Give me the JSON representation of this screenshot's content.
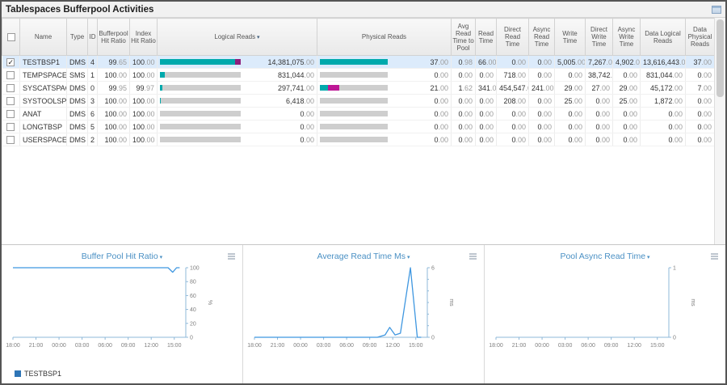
{
  "title": "Tablespaces Bufferpool Activities",
  "colors": {
    "teal": "#00a9ac",
    "purple": "#8e1f7c",
    "magenta": "#bd1795",
    "line_blue": "#3f97e0",
    "axis_blue": "#8fb8d8"
  },
  "table": {
    "headers": [
      "",
      "Name",
      "Type",
      "ID",
      "Bufferpool Hit Ratio",
      "Index Hit Ratio",
      "Logical Reads",
      "Physical Reads",
      "Avg Read Time to Pool",
      "Read Time",
      "Direct Read Time",
      "Async Read Time",
      "Write Time",
      "Direct Write Time",
      "Async Write Time",
      "Data Logical Reads",
      "Data Physical Reads"
    ],
    "sorted_header": "Logical Reads",
    "rows": [
      {
        "checked": true,
        "name": "TESTBSP1",
        "type": "DMS",
        "id": "4",
        "bp_hit": "99.65",
        "idx_hit": "100.00",
        "logical": {
          "value": "14,381,075.00",
          "bar": [
            {
              "c": "#00a9ac",
              "pct": 93
            },
            {
              "c": "#8e1f7c",
              "pct": 7
            }
          ]
        },
        "physical": {
          "value": "37.00",
          "bar": [
            {
              "c": "#00a9ac",
              "pct": 100
            }
          ]
        },
        "avg_read_pool": "0.98",
        "read_time": "66.00",
        "direct_read": "0.00",
        "async_read": "0.00",
        "write_time": "5,005.00",
        "direct_write": "7,267.00",
        "async_write": "4,902.00",
        "data_logical": "13,616,443.00",
        "data_physical": "37.00"
      },
      {
        "checked": false,
        "name": "TEMPSPACE1",
        "type": "SMS",
        "id": "1",
        "bp_hit": "100.00",
        "idx_hit": "100.00",
        "logical": {
          "value": "831,044.00",
          "bar": [
            {
              "c": "#00a9ac",
              "pct": 6
            }
          ]
        },
        "physical": {
          "value": "0.00",
          "bar": []
        },
        "avg_read_pool": "0.00",
        "read_time": "0.00",
        "direct_read": "718.00",
        "async_read": "0.00",
        "write_time": "0.00",
        "direct_write": "38,742.00",
        "async_write": "0.00",
        "data_logical": "831,044.00",
        "data_physical": "0.00"
      },
      {
        "checked": false,
        "name": "SYSCATSPACE",
        "type": "DMS",
        "id": "0",
        "bp_hit": "99.95",
        "idx_hit": "99.97",
        "logical": {
          "value": "297,741.00",
          "bar": [
            {
              "c": "#00a9ac",
              "pct": 2.5
            }
          ]
        },
        "physical": {
          "value": "21.00",
          "bar": [
            {
              "c": "#00a9ac",
              "pct": 12
            },
            {
              "c": "#bd1795",
              "pct": 16
            }
          ]
        },
        "avg_read_pool": "1.62",
        "read_time": "341.00",
        "direct_read": "454,547.00",
        "async_read": "241.00",
        "write_time": "29.00",
        "direct_write": "27.00",
        "async_write": "29.00",
        "data_logical": "45,172.00",
        "data_physical": "7.00"
      },
      {
        "checked": false,
        "name": "SYSTOOLSPACE",
        "type": "DMS",
        "id": "3",
        "bp_hit": "100.00",
        "idx_hit": "100.00",
        "logical": {
          "value": "6,418.00",
          "bar": [
            {
              "c": "#00a9ac",
              "pct": 0.8
            }
          ]
        },
        "physical": {
          "value": "0.00",
          "bar": []
        },
        "avg_read_pool": "0.00",
        "read_time": "0.00",
        "direct_read": "208.00",
        "async_read": "0.00",
        "write_time": "25.00",
        "direct_write": "0.00",
        "async_write": "25.00",
        "data_logical": "1,872.00",
        "data_physical": "0.00"
      },
      {
        "checked": false,
        "name": "ANAT",
        "type": "DMS",
        "id": "6",
        "bp_hit": "100.00",
        "idx_hit": "100.00",
        "logical": {
          "value": "0.00",
          "bar": []
        },
        "physical": {
          "value": "0.00",
          "bar": []
        },
        "avg_read_pool": "0.00",
        "read_time": "0.00",
        "direct_read": "0.00",
        "async_read": "0.00",
        "write_time": "0.00",
        "direct_write": "0.00",
        "async_write": "0.00",
        "data_logical": "0.00",
        "data_physical": "0.00"
      },
      {
        "checked": false,
        "name": "LONGTBSP",
        "type": "DMS",
        "id": "5",
        "bp_hit": "100.00",
        "idx_hit": "100.00",
        "logical": {
          "value": "0.00",
          "bar": []
        },
        "physical": {
          "value": "0.00",
          "bar": []
        },
        "avg_read_pool": "0.00",
        "read_time": "0.00",
        "direct_read": "0.00",
        "async_read": "0.00",
        "write_time": "0.00",
        "direct_write": "0.00",
        "async_write": "0.00",
        "data_logical": "0.00",
        "data_physical": "0.00"
      },
      {
        "checked": false,
        "name": "USERSPACE1",
        "type": "DMS",
        "id": "2",
        "bp_hit": "100.00",
        "idx_hit": "100.00",
        "logical": {
          "value": "0.00",
          "bar": []
        },
        "physical": {
          "value": "0.00",
          "bar": []
        },
        "avg_read_pool": "0.00",
        "read_time": "0.00",
        "direct_read": "0.00",
        "async_read": "0.00",
        "write_time": "0.00",
        "direct_write": "0.00",
        "async_write": "0.00",
        "data_logical": "0.00",
        "data_physical": "0.00"
      }
    ]
  },
  "legend": {
    "label": "TESTBSP1",
    "color": "#2e75b6"
  },
  "chart_data": [
    {
      "type": "line",
      "title": "Buffer Pool Hit Ratio",
      "ylabel": "%",
      "ylim": [
        0,
        100
      ],
      "y_ticks": [
        0,
        20,
        40,
        60,
        80,
        100
      ],
      "y_minor": [],
      "x_tick_labels": [
        "18:00",
        "21:00",
        "00:00",
        "03:00",
        "06:00",
        "09:00",
        "12:00",
        "15:00"
      ],
      "x_tick_pos": [
        0,
        3,
        6,
        9,
        12,
        15,
        18,
        21
      ],
      "xlim": [
        0,
        22.5
      ],
      "grid": false,
      "legend_position": "bottom-left",
      "series": [
        {
          "name": "TESTBSP1",
          "color": "#3f97e0",
          "points": [
            [
              0,
              100
            ],
            [
              20.2,
              100
            ],
            [
              20.8,
              93.5
            ],
            [
              21.3,
              100
            ],
            [
              21.7,
              100
            ]
          ]
        }
      ]
    },
    {
      "type": "line",
      "title": "Average Read Time Ms",
      "ylabel": "ms",
      "ylim": [
        0,
        6
      ],
      "y_ticks": [
        0,
        6
      ],
      "y_minor": [
        1,
        2,
        3,
        4,
        5
      ],
      "x_tick_labels": [
        "18:00",
        "21:00",
        "00:00",
        "03:00",
        "06:00",
        "09:00",
        "12:00",
        "15:00"
      ],
      "x_tick_pos": [
        0,
        3,
        6,
        9,
        12,
        15,
        18,
        21
      ],
      "xlim": [
        0,
        22.5
      ],
      "grid": false,
      "series": [
        {
          "name": "TESTBSP1",
          "color": "#3f97e0",
          "points": [
            [
              0,
              0
            ],
            [
              16,
              0
            ],
            [
              17,
              0.2
            ],
            [
              17.6,
              0.85
            ],
            [
              18.3,
              0.2
            ],
            [
              19,
              0.35
            ],
            [
              20.3,
              6
            ],
            [
              21.2,
              0
            ],
            [
              21.7,
              0
            ]
          ]
        }
      ]
    },
    {
      "type": "line",
      "title": "Pool Async Read Time",
      "ylabel": "ms",
      "ylim": [
        0,
        1
      ],
      "y_ticks": [
        0,
        1
      ],
      "y_minor": [],
      "x_tick_labels": [
        "18:00",
        "21:00",
        "00:00",
        "03:00",
        "06:00",
        "09:00",
        "12:00",
        "15:00"
      ],
      "x_tick_pos": [
        0,
        3,
        6,
        9,
        12,
        15,
        18,
        21
      ],
      "xlim": [
        0,
        22.5
      ],
      "grid": false,
      "series": []
    }
  ]
}
